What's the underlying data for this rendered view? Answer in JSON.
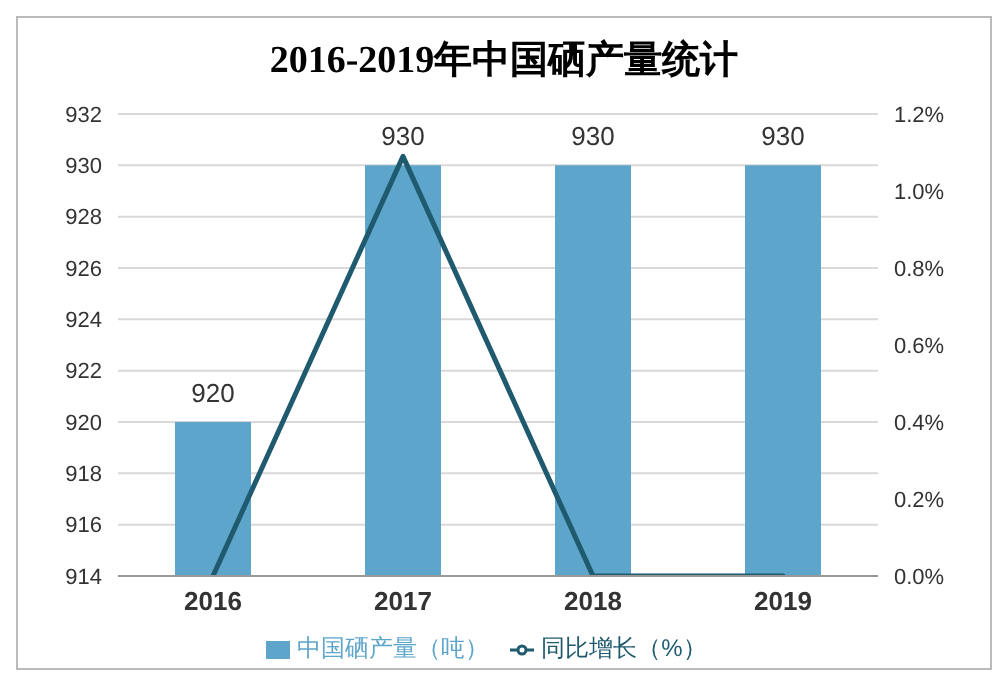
{
  "chart_data": {
    "type": "bar",
    "title": "2016-2019年中国硒产量统计",
    "categories": [
      "2016",
      "2017",
      "2018",
      "2019"
    ],
    "series": [
      {
        "name": "中国硒产量（吨）",
        "color": "#5ea5cb",
        "values": [
          920,
          930,
          930,
          930
        ],
        "value_labels": [
          "920",
          "930",
          "930",
          "930"
        ]
      },
      {
        "name": "同比增长（%）",
        "type": "line",
        "axis": "y2",
        "color": "#1f5a6e",
        "values": [
          0,
          1.09,
          0,
          0
        ]
      }
    ],
    "ylim": [
      914,
      932
    ],
    "yticks": [
      914,
      916,
      918,
      920,
      922,
      924,
      926,
      928,
      930,
      932
    ],
    "y2lim": [
      0,
      1.2
    ],
    "y2ticks": [
      {
        "value": 0,
        "label": "0.0%"
      },
      {
        "value": 0.2,
        "label": "0.2%"
      },
      {
        "value": 0.4,
        "label": "0.4%"
      },
      {
        "value": 0.6,
        "label": "0.6%"
      },
      {
        "value": 0.8,
        "label": "0.8%"
      },
      {
        "value": 1.0,
        "label": "1.0%"
      },
      {
        "value": 1.2,
        "label": "1.2%"
      }
    ],
    "grid": "y",
    "legend": "bottom",
    "marker": "none"
  }
}
